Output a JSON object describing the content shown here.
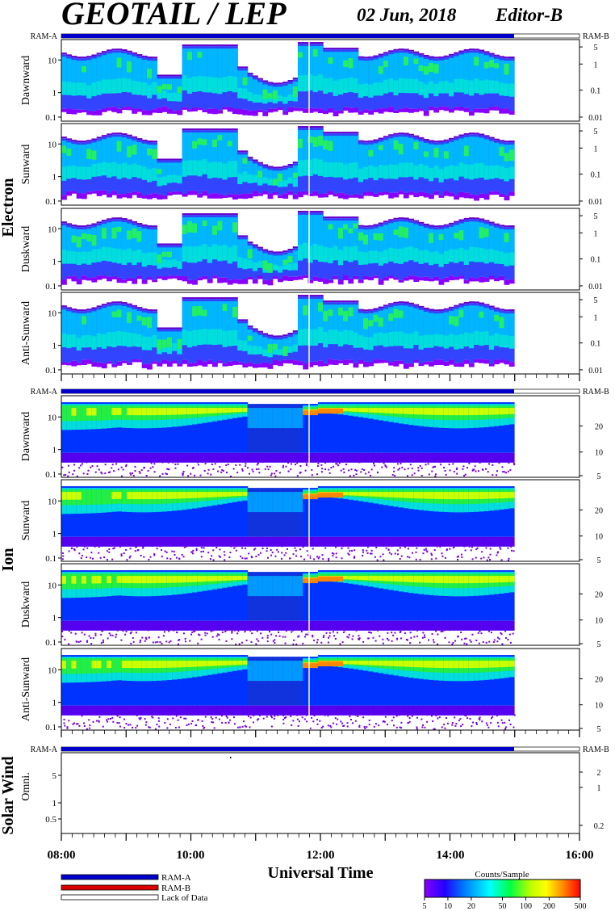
{
  "header": {
    "title": "GEOTAIL / LEP",
    "date": "02 Jun, 2018",
    "editor": "Editor-B"
  },
  "ram_labels": {
    "a": "RAM-A",
    "b": "RAM-B"
  },
  "groups": [
    {
      "name": "Electron",
      "panels": [
        "Dawnward",
        "Sunward",
        "Duskward",
        "Anti-Sunward"
      ]
    },
    {
      "name": "Ion",
      "panels": [
        "Dawnward",
        "Sunward",
        "Duskward",
        "Anti-Sunward"
      ]
    },
    {
      "name": "Solar Wind",
      "panels": [
        "Omni."
      ]
    }
  ],
  "axis": {
    "x_label": "Universal Time",
    "x_ticks": [
      "08:00",
      "10:00",
      "12:00",
      "14:00",
      "16:00"
    ],
    "electron_left_ticks": [
      "10",
      "1",
      "0.1"
    ],
    "electron_right_ticks": [
      "5",
      "1",
      "0.1",
      "0.01"
    ],
    "ion_left_ticks": [
      "10",
      "1",
      "0.1"
    ],
    "ion_right_ticks": [
      "20",
      "10",
      "5"
    ],
    "sw_left_ticks": [
      "5",
      "1",
      "0.5"
    ],
    "sw_right_ticks": [
      "2",
      "1",
      "0.2"
    ]
  },
  "legend": {
    "items": [
      {
        "label": "RAM-A",
        "color": "#0000cc"
      },
      {
        "label": "RAM-B",
        "color": "#dd0000"
      },
      {
        "label": "Lack of Data",
        "color": "#ffffff"
      }
    ]
  },
  "colorbar": {
    "title": "Counts/Sample",
    "ticks": [
      "5",
      "10",
      "20",
      "50",
      "100",
      "200",
      "500"
    ],
    "colors": [
      "#8800ff",
      "#2200ff",
      "#0077ff",
      "#00ffff",
      "#00ff44",
      "#bbff00",
      "#ffff00",
      "#ff8800",
      "#ff0000"
    ]
  },
  "chart_data": {
    "type": "heatmap",
    "title": "GEOTAIL / LEP",
    "xlabel": "Universal Time",
    "x_range": [
      "08:00",
      "16:00"
    ],
    "data_coverage_end": "15:00",
    "ram_mode": "RAM-A",
    "electron_energy_keV_range": [
      0.1,
      40
    ],
    "ion_energy_keV_range": [
      0.1,
      40
    ],
    "colorbar_counts_range": [
      5,
      500
    ]
  }
}
